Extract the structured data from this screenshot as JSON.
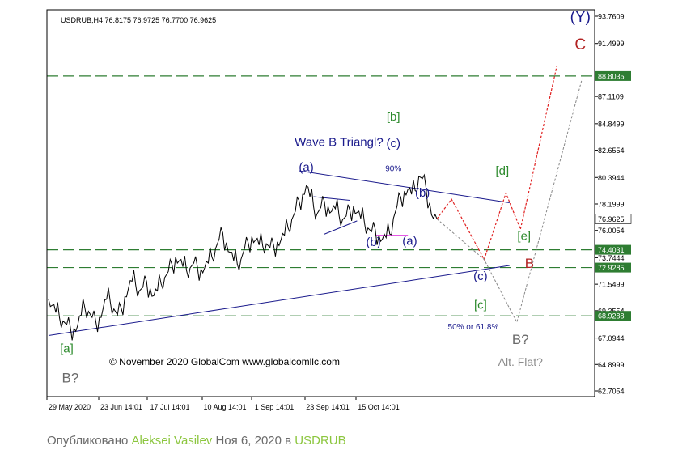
{
  "chart_data": {
    "type": "line",
    "symbol_header": "USDRUB,H4  76.8175 76.9725 76.7700 76.9625",
    "y_ticks": [
      "93.7609",
      "91.4999",
      "88.8035",
      "87.1109",
      "84.8499",
      "82.6554",
      "80.3944",
      "78.1999",
      "76.9625",
      "76.0054",
      "74.4031",
      "73.7444",
      "72.9285",
      "71.5499",
      "69.3554",
      "68.9288",
      "67.0944",
      "64.8999",
      "62.7054"
    ],
    "x_ticks": [
      "29 May 2020",
      "23 Jun 14:01",
      "17 Jul 14:01",
      "10 Aug 14:01",
      "1 Sep 14:01",
      "23 Sep 14:01",
      "15 Oct 14:01"
    ],
    "ylim": [
      62.7054,
      93.7609
    ],
    "current_price": "76.9625",
    "levels": [
      {
        "value": "88.8035",
        "color": "#2e7d32"
      },
      {
        "value": "74.4031",
        "color": "#2e7d32"
      },
      {
        "value": "72.9285",
        "color": "#2e7d32"
      },
      {
        "value": "68.9288",
        "color": "#2e7d32"
      }
    ],
    "price_path": [
      [
        0,
        70.3
      ],
      [
        2,
        69.8
      ],
      [
        4,
        69.2
      ],
      [
        6,
        68.8
      ],
      [
        8,
        68.5
      ],
      [
        10,
        68.2
      ],
      [
        12,
        68.0
      ],
      [
        14,
        67.9
      ],
      [
        16,
        68.1
      ],
      [
        18,
        69.0
      ],
      [
        20,
        69.6
      ],
      [
        22,
        69.3
      ],
      [
        24,
        68.8
      ],
      [
        26,
        68.5
      ],
      [
        28,
        68.8
      ],
      [
        30,
        69.5
      ],
      [
        32,
        70.3
      ],
      [
        34,
        70.1
      ],
      [
        36,
        69.5
      ],
      [
        38,
        69.0
      ],
      [
        40,
        69.6
      ],
      [
        42,
        70.5
      ],
      [
        44,
        71.2
      ],
      [
        46,
        71.8
      ],
      [
        48,
        71.5
      ],
      [
        50,
        71.0
      ],
      [
        52,
        71.3
      ],
      [
        54,
        71.8
      ],
      [
        56,
        71.2
      ],
      [
        58,
        70.6
      ],
      [
        60,
        71.0
      ],
      [
        62,
        71.6
      ],
      [
        64,
        72.1
      ],
      [
        66,
        72.6
      ],
      [
        68,
        73.2
      ],
      [
        70,
        73.8
      ],
      [
        72,
        73.5
      ],
      [
        74,
        73.0
      ],
      [
        76,
        72.7
      ],
      [
        78,
        72.9
      ],
      [
        80,
        73.3
      ],
      [
        82,
        73.0
      ],
      [
        84,
        72.8
      ],
      [
        86,
        72.9
      ],
      [
        88,
        73.3
      ],
      [
        90,
        73.8
      ],
      [
        92,
        74.5
      ],
      [
        94,
        75.3
      ],
      [
        96,
        75.8
      ],
      [
        98,
        75.0
      ],
      [
        100,
        74.2
      ],
      [
        102,
        73.5
      ],
      [
        104,
        73.2
      ],
      [
        106,
        73.6
      ],
      [
        108,
        74.5
      ],
      [
        110,
        75.0
      ],
      [
        112,
        75.5
      ],
      [
        114,
        75.2
      ],
      [
        116,
        74.8
      ],
      [
        118,
        74.7
      ],
      [
        120,
        74.9
      ],
      [
        122,
        74.6
      ],
      [
        124,
        74.8
      ],
      [
        126,
        75.0
      ],
      [
        128,
        75.2
      ],
      [
        130,
        75.6
      ],
      [
        132,
        76.2
      ],
      [
        134,
        76.9
      ],
      [
        136,
        77.6
      ],
      [
        138,
        78.5
      ],
      [
        140,
        79.0
      ],
      [
        142,
        79.7
      ],
      [
        144,
        78.8
      ],
      [
        146,
        78.0
      ],
      [
        148,
        77.4
      ],
      [
        150,
        77.9
      ],
      [
        152,
        78.4
      ],
      [
        154,
        78.0
      ],
      [
        156,
        77.6
      ],
      [
        158,
        77.8
      ],
      [
        160,
        77.3
      ],
      [
        162,
        76.9
      ],
      [
        164,
        77.2
      ],
      [
        166,
        77.7
      ],
      [
        168,
        78.0
      ],
      [
        170,
        77.5
      ],
      [
        172,
        77.0
      ],
      [
        174,
        76.7
      ],
      [
        176,
        76.2
      ],
      [
        178,
        75.9
      ],
      [
        180,
        76.1
      ],
      [
        182,
        75.6
      ],
      [
        184,
        75.3
      ],
      [
        186,
        75.4
      ],
      [
        188,
        75.7
      ],
      [
        190,
        77.0
      ],
      [
        192,
        78.0
      ],
      [
        194,
        78.8
      ],
      [
        196,
        79.2
      ],
      [
        198,
        79.4
      ],
      [
        200,
        79.0
      ],
      [
        202,
        79.3
      ],
      [
        204,
        80.5
      ],
      [
        206,
        80.3
      ],
      [
        208,
        79.5
      ],
      [
        210,
        78.3
      ],
      [
        212,
        77.0
      ],
      [
        214,
        76.96
      ]
    ],
    "trendlines": [
      {
        "name": "upper-triangle",
        "from": [
          138,
          80.95
        ],
        "to": [
          254,
          78.3
        ]
      },
      {
        "name": "lower-support",
        "from": [
          0,
          67.3
        ],
        "to": [
          254,
          73.1
        ]
      },
      {
        "name": "small-b-triangle",
        "from": [
          146,
          78.8
        ],
        "to": [
          166,
          78.5
        ]
      },
      {
        "name": "small-b-triangle-low",
        "from": [
          152,
          75.7
        ],
        "to": [
          170,
          76.8
        ]
      }
    ],
    "red_scenario": [
      [
        214,
        76.96
      ],
      [
        222,
        78.6
      ],
      [
        240,
        73.6
      ],
      [
        252,
        79.1
      ],
      [
        260,
        76.1
      ],
      [
        280,
        89.6
      ]
    ],
    "gray_scenario": [
      [
        214,
        76.96
      ],
      [
        240,
        73.6
      ],
      [
        258,
        68.4
      ],
      [
        294,
        88.6
      ]
    ],
    "annotations": [
      {
        "text": "Wave B Triangl?",
        "x": 160,
        "y": 83.0,
        "color": "#1a1a8c",
        "size": 15
      },
      {
        "text": "90%",
        "x": 190,
        "y": 80.9,
        "color": "#1a1a8c",
        "size": 10,
        "yoff": -62
      },
      {
        "text": "[b]",
        "x": 190,
        "y": 85.1,
        "color": "#2e8b2e",
        "size": 15
      },
      {
        "text": "(c)",
        "x": 190,
        "y": 82.9,
        "color": "#1a1a8c",
        "size": 15
      },
      {
        "text": "(a)",
        "x": 142,
        "y": 80.9,
        "color": "#1a1a8c",
        "size": 15
      },
      {
        "text": "(b)",
        "x": 206,
        "y": 78.8,
        "color": "#1a1a8c",
        "size": 15
      },
      {
        "text": "(b)",
        "x": 179,
        "y": 74.7,
        "color": "#1a1a8c",
        "size": 15
      },
      {
        "text": "(a)",
        "x": 199,
        "y": 74.8,
        "color": "#1a1a8c",
        "size": 15
      },
      {
        "text": "[d]",
        "x": 250,
        "y": 80.6,
        "color": "#2e8b2e",
        "size": 15
      },
      {
        "text": "[e]",
        "x": 262,
        "y": 75.2,
        "color": "#2e8b2e",
        "size": 15
      },
      {
        "text": "B",
        "x": 265,
        "y": 72.9,
        "color": "#b22222",
        "size": 17
      },
      {
        "text": "(c)",
        "x": 238,
        "y": 71.9,
        "color": "#1a1a8c",
        "size": 15
      },
      {
        "text": "[c]",
        "x": 238,
        "y": 69.5,
        "color": "#2e8b2e",
        "size": 15
      },
      {
        "text": "50% or 61.8%",
        "x": 234,
        "y": 67.8,
        "color": "#1a1a8c",
        "size": 10
      },
      {
        "text": "B?",
        "x": 260,
        "y": 66.6,
        "color": "#6b6b6b",
        "size": 17
      },
      {
        "text": "Alt. Flat?",
        "x": 260,
        "y": 64.8,
        "color": "#8c8c8c",
        "size": 14
      },
      {
        "text": "(Y)",
        "x": 293,
        "y": 93.3,
        "color": "#1a1a8c",
        "size": 19
      },
      {
        "text": "C",
        "x": 293,
        "y": 91.0,
        "color": "#b22222",
        "size": 19
      },
      {
        "text": "[a]",
        "x": 10,
        "y": 65.9,
        "color": "#2e8b2e",
        "size": 15
      },
      {
        "text": "B?",
        "x": 12,
        "y": 63.4,
        "color": "#6b6b6b",
        "size": 17
      }
    ],
    "copyright": "© November 2020 GlobalCom www.globalcomllc.com"
  },
  "caption": {
    "prefix": "Опубликовано ",
    "author": "Aleksei Vasilev",
    "middle": " Ноя 6, 2020 в ",
    "instrument": "USDRUB"
  },
  "colors": {
    "price": "#000000",
    "trend": "#1a1a8c",
    "level": "#2e7d32",
    "scenario_main": "#e02020",
    "scenario_alt": "#888888",
    "magenta": "#e040e0"
  }
}
